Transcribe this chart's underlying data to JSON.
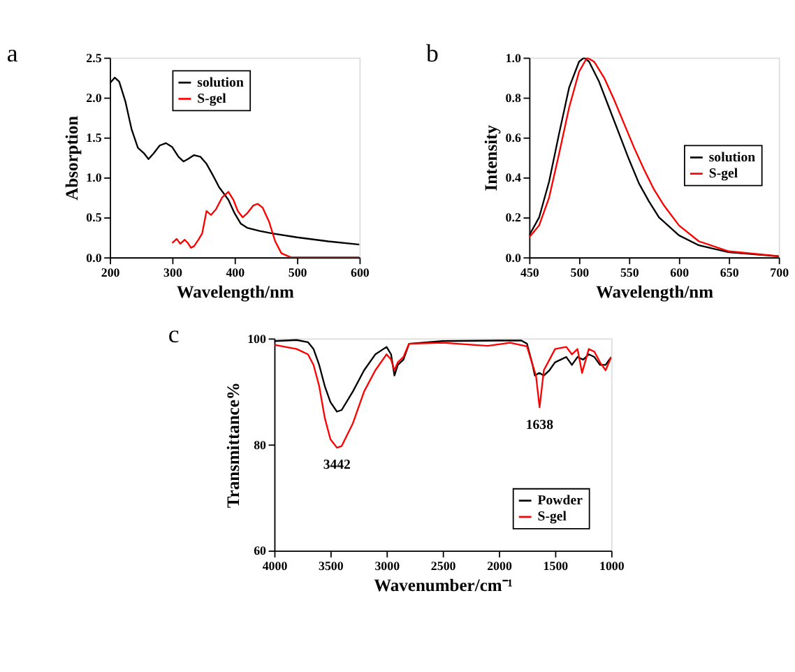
{
  "chart_data": [
    {
      "type": "line",
      "title": "a",
      "xlabel": "Wavelength/nm",
      "ylabel": "Absorption",
      "xlim": [
        200,
        600
      ],
      "xticks": [
        200,
        300,
        400,
        500,
        600
      ],
      "ylim": [
        0,
        2.5
      ],
      "yticks": [
        {
          "value": 0,
          "label": "0.0"
        },
        0.5,
        {
          "value": 1,
          "label": "1.0"
        },
        1.5,
        {
          "value": 2,
          "label": "2.0"
        },
        2.5
      ],
      "grid": false,
      "legend": "top",
      "series": [
        {
          "name": "solution",
          "color": "#000000",
          "x": [
            200,
            208,
            215,
            225,
            235,
            245,
            255,
            262,
            270,
            280,
            290,
            300,
            310,
            318,
            325,
            335,
            345,
            355,
            365,
            375,
            390,
            400,
            410,
            420,
            440,
            460,
            500,
            550,
            600
          ],
          "values": [
            2.18,
            2.25,
            2.2,
            1.95,
            1.6,
            1.37,
            1.3,
            1.23,
            1.3,
            1.4,
            1.43,
            1.38,
            1.26,
            1.2,
            1.23,
            1.28,
            1.26,
            1.17,
            1.03,
            0.88,
            0.72,
            0.55,
            0.42,
            0.37,
            0.33,
            0.3,
            0.25,
            0.2,
            0.16
          ]
        },
        {
          "name": "S-gel",
          "color": "#ff0000",
          "x": [
            300,
            307,
            313,
            320,
            325,
            330,
            335,
            342,
            348,
            355,
            362,
            370,
            380,
            390,
            398,
            405,
            413,
            420,
            430,
            437,
            445,
            455,
            465,
            475,
            490,
            500,
            600
          ],
          "values": [
            0.18,
            0.23,
            0.17,
            0.22,
            0.18,
            0.12,
            0.14,
            0.22,
            0.3,
            0.58,
            0.53,
            0.6,
            0.75,
            0.82,
            0.72,
            0.58,
            0.5,
            0.55,
            0.65,
            0.67,
            0.62,
            0.45,
            0.2,
            0.05,
            0,
            0,
            0
          ]
        }
      ]
    },
    {
      "type": "line",
      "title": "b",
      "xlabel": "Wavelength/nm",
      "ylabel": "Intensity",
      "xlim": [
        450,
        700
      ],
      "xticks": [
        450,
        500,
        550,
        600,
        650,
        700
      ],
      "ylim": [
        0,
        1.0
      ],
      "yticks": [
        {
          "value": 0,
          "label": "0.0"
        },
        0.2,
        0.4,
        0.6,
        0.8,
        {
          "value": 1,
          "label": "1.0"
        }
      ],
      "grid": false,
      "legend": "right",
      "series": [
        {
          "name": "solution",
          "color": "#000000",
          "x": [
            450,
            460,
            470,
            480,
            490,
            500,
            505,
            510,
            520,
            530,
            540,
            550,
            560,
            570,
            580,
            600,
            620,
            650,
            700
          ],
          "values": [
            0.11,
            0.2,
            0.38,
            0.62,
            0.85,
            0.98,
            1.0,
            0.98,
            0.88,
            0.75,
            0.62,
            0.49,
            0.37,
            0.28,
            0.2,
            0.11,
            0.06,
            0.025,
            0.005
          ]
        },
        {
          "name": "S-gel",
          "color": "#ff0000",
          "x": [
            450,
            460,
            470,
            480,
            490,
            500,
            508,
            515,
            525,
            535,
            545,
            555,
            565,
            575,
            585,
            600,
            620,
            650,
            700
          ],
          "values": [
            0.1,
            0.16,
            0.3,
            0.52,
            0.75,
            0.93,
            1.0,
            0.98,
            0.9,
            0.79,
            0.67,
            0.55,
            0.44,
            0.34,
            0.26,
            0.16,
            0.08,
            0.03,
            0.006
          ]
        }
      ]
    },
    {
      "type": "line",
      "title": "c",
      "xlabel": "Wavenumber/cm⁻¹",
      "ylabel": "Transmittance%",
      "xlim": [
        4000,
        1000
      ],
      "xticks": [
        4000,
        3500,
        3000,
        2500,
        2000,
        1500,
        1000
      ],
      "ylim": [
        60,
        100
      ],
      "yticks": [
        60,
        80,
        100
      ],
      "grid": false,
      "legend": "bottom right",
      "annotations": [
        {
          "text": "3442",
          "x": 3442,
          "y": 79.4
        },
        {
          "text": "1638",
          "x": 1638,
          "y": 87
        }
      ],
      "series": [
        {
          "name": "Powder",
          "color": "#000000",
          "x": [
            4000,
            3800,
            3700,
            3650,
            3600,
            3550,
            3500,
            3442,
            3400,
            3300,
            3200,
            3100,
            3000,
            2960,
            2930,
            2900,
            2850,
            2800,
            2500,
            2000,
            1800,
            1750,
            1700,
            1680,
            1640,
            1600,
            1550,
            1500,
            1450,
            1400,
            1350,
            1300,
            1250,
            1200,
            1150,
            1100,
            1050,
            1000
          ],
          "values": [
            99.5,
            99.7,
            99.3,
            98,
            95,
            91,
            88,
            86.2,
            86.5,
            90,
            94,
            97,
            98.4,
            97,
            93,
            95,
            96,
            99,
            99.5,
            99.6,
            99.6,
            99,
            95,
            93,
            93.5,
            93,
            94,
            95.5,
            96,
            96.5,
            95,
            96.5,
            96,
            97,
            96.5,
            95,
            95,
            96.5
          ]
        },
        {
          "name": "S-gel",
          "color": "#ff0000",
          "x": [
            4000,
            3800,
            3700,
            3650,
            3600,
            3550,
            3500,
            3442,
            3400,
            3300,
            3200,
            3100,
            3000,
            2960,
            2930,
            2900,
            2850,
            2800,
            2500,
            2100,
            1900,
            1750,
            1700,
            1670,
            1638,
            1600,
            1550,
            1500,
            1450,
            1400,
            1350,
            1300,
            1260,
            1200,
            1150,
            1100,
            1050,
            1000
          ],
          "values": [
            98.8,
            98,
            97,
            95,
            91,
            85,
            81,
            79.4,
            79.7,
            84,
            90,
            94,
            97,
            96,
            94,
            95.5,
            96.5,
            99,
            99.2,
            98.6,
            99.2,
            98.5,
            95,
            93,
            87,
            94,
            96,
            98,
            98.2,
            98.4,
            97,
            98,
            93.5,
            98,
            97.5,
            95.5,
            94,
            96.5
          ]
        }
      ]
    }
  ]
}
